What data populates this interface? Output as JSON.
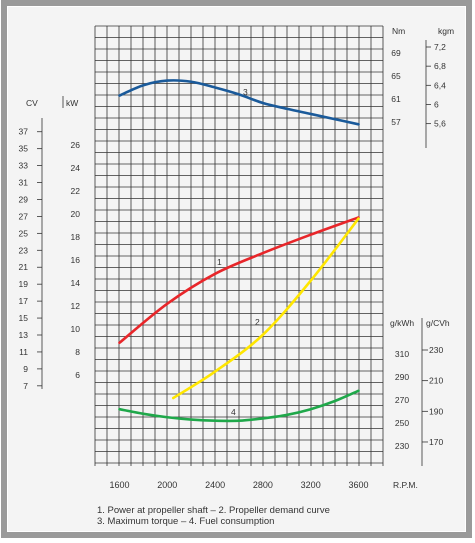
{
  "chart_data": {
    "type": "line",
    "x_axis": {
      "label": "R.P.M.",
      "ticks": [
        "1600",
        "2000",
        "2400",
        "2800",
        "3200",
        "3600"
      ],
      "range": [
        1600,
        3600
      ]
    },
    "left_axes": {
      "cv": {
        "label": "CV",
        "ticks": [
          "37",
          "35",
          "33",
          "31",
          "29",
          "27",
          "25",
          "23",
          "21",
          "19",
          "17",
          "15",
          "13",
          "11",
          "9",
          "7"
        ],
        "range": [
          7,
          37
        ]
      },
      "kw": {
        "label": "kW",
        "ticks": [
          "26",
          "24",
          "22",
          "20",
          "18",
          "16",
          "14",
          "12",
          "10",
          "8",
          "6"
        ],
        "range": [
          6,
          26
        ]
      }
    },
    "right_axes": {
      "nm": {
        "label": "Nm",
        "ticks": [
          "69",
          "65",
          "61",
          "57"
        ],
        "range": [
          57,
          69
        ]
      },
      "kgm": {
        "label": "kgm",
        "ticks": [
          "7,2",
          "6,8",
          "6,4",
          "6",
          "5,6"
        ],
        "range": [
          5.6,
          7.2
        ]
      },
      "gkwh": {
        "label": "g/kWh",
        "ticks": [
          "310",
          "290",
          "270",
          "250",
          "230"
        ],
        "range": [
          230,
          310
        ]
      },
      "gcvh": {
        "label": "g/CVh",
        "ticks": [
          "230",
          "210",
          "190",
          "170"
        ],
        "range": [
          170,
          230
        ]
      }
    },
    "series": [
      {
        "label": "1",
        "color": "#e8262a",
        "axis": "kW",
        "points": [
          [
            1600,
            8.8
          ],
          [
            2000,
            12.2
          ],
          [
            2400,
            14.8
          ],
          [
            2800,
            16.6
          ],
          [
            3200,
            18.2
          ],
          [
            3600,
            19.7
          ]
        ]
      },
      {
        "label": "2",
        "color": "#ffe600",
        "axis": "kW",
        "points": [
          [
            2050,
            4.0
          ],
          [
            2400,
            6.3
          ],
          [
            2800,
            9.5
          ],
          [
            3200,
            14.2
          ],
          [
            3600,
            19.6
          ]
        ]
      },
      {
        "label": "3",
        "color": "#1a5a9a",
        "axis": "Nm",
        "points": [
          [
            1600,
            61.6
          ],
          [
            1800,
            63.4
          ],
          [
            2000,
            64.2
          ],
          [
            2200,
            64.0
          ],
          [
            2400,
            63.0
          ],
          [
            2600,
            61.8
          ],
          [
            2800,
            60.3
          ],
          [
            3000,
            59.3
          ],
          [
            3200,
            58.4
          ],
          [
            3400,
            57.5
          ],
          [
            3600,
            56.6
          ]
        ]
      },
      {
        "label": "4",
        "color": "#1fa84a",
        "axis": "g/kWh",
        "points": [
          [
            1600,
            262
          ],
          [
            1800,
            258
          ],
          [
            2000,
            255
          ],
          [
            2200,
            253
          ],
          [
            2400,
            252
          ],
          [
            2600,
            252
          ],
          [
            2800,
            254
          ],
          [
            3000,
            257
          ],
          [
            3200,
            262
          ],
          [
            3400,
            269
          ],
          [
            3600,
            278
          ]
        ]
      }
    ],
    "caption": [
      "1. Power at propeller shaft –  2. Propeller demand curve",
      "3. Maximum torque –  4. Fuel consumption"
    ],
    "grid": true
  }
}
